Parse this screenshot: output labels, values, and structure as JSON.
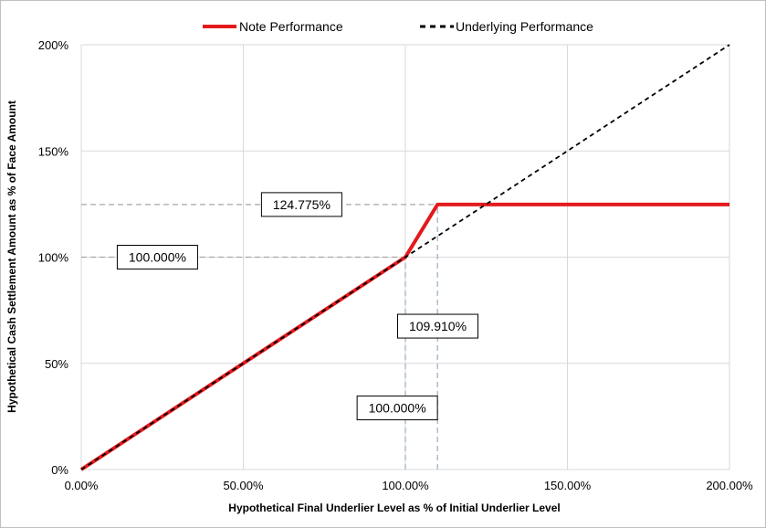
{
  "chart_data": {
    "type": "line",
    "title": "",
    "xlabel": "Hypothetical Final Underlier Level as % of Initial Underlier Level",
    "ylabel": "Hypothetical Cash Settlement Amount as % of Face Amount",
    "xlim": [
      0,
      200
    ],
    "ylim": [
      0,
      200
    ],
    "x_ticks": [
      0,
      50,
      100,
      150,
      200
    ],
    "x_tick_labels": [
      "0.00%",
      "50.00%",
      "100.00%",
      "150.00%",
      "200.00%"
    ],
    "y_ticks": [
      0,
      50,
      100,
      150,
      200
    ],
    "y_tick_labels": [
      "0%",
      "50%",
      "100%",
      "150%",
      "200%"
    ],
    "grid": true,
    "legend_position": "top",
    "series": [
      {
        "name": "Note Performance",
        "color": "#e31a1c",
        "style": "solid",
        "x": [
          0,
          100,
          109.91,
          200
        ],
        "y": [
          0,
          100,
          124.775,
          124.775
        ]
      },
      {
        "name": "Underlying Performance",
        "color": "#000000",
        "style": "dashed",
        "x": [
          0,
          200
        ],
        "y": [
          0,
          200
        ]
      }
    ],
    "reference_lines": [
      {
        "kind": "horizontal",
        "y": 124.775,
        "x_from": 0,
        "x_to": 109.91
      },
      {
        "kind": "horizontal",
        "y": 100,
        "x_from": 0,
        "x_to": 100
      },
      {
        "kind": "vertical",
        "x": 100,
        "y_from": 0,
        "y_to": 100
      },
      {
        "kind": "vertical",
        "x": 109.91,
        "y_from": 0,
        "y_to": 124.775
      }
    ],
    "annotations": [
      {
        "id": "ann-cap-level",
        "text": "124.775%",
        "x": 68,
        "y": 124.775
      },
      {
        "id": "ann-upside-start",
        "text": "100.000%",
        "x": 23.5,
        "y": 100
      },
      {
        "id": "ann-cap-start",
        "text": "109.910%",
        "x": 110,
        "y": 67.5
      },
      {
        "id": "ann-initial",
        "text": "100.000%",
        "x": 97.5,
        "y": 29
      }
    ]
  }
}
